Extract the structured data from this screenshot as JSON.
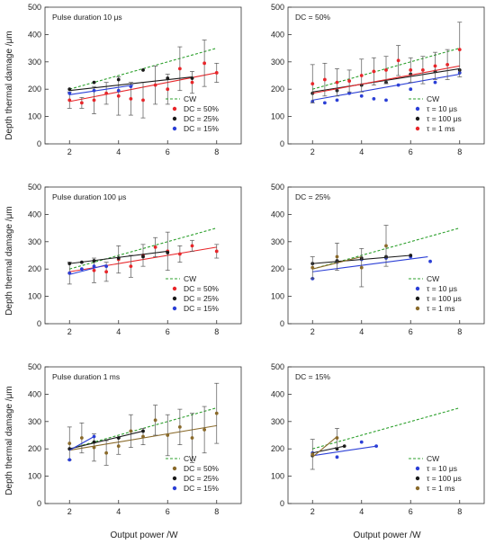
{
  "figure": {
    "ylabel": "Depth thermal damage /μm",
    "xlabel": "Output power /W"
  },
  "colors": {
    "cw": "#2ca02c",
    "red": "#e8262a",
    "black": "#1a1a1a",
    "blue": "#2b3fd6",
    "brown": "#8a6a2a"
  },
  "chart_data": [
    {
      "type": "scatter",
      "title": "Pulse duration 10 μs",
      "xlim": [
        1,
        9
      ],
      "ylim": [
        0,
        500
      ],
      "xticks": [
        2,
        4,
        6,
        8
      ],
      "yticks": [
        0,
        100,
        200,
        300,
        400,
        500
      ],
      "legend": [
        {
          "label": "CW",
          "style": "dash",
          "color": "#2ca02c"
        },
        {
          "label": "DC = 50%",
          "style": "dot",
          "color": "#e8262a"
        },
        {
          "label": "DC = 25%",
          "style": "dot",
          "color": "#1a1a1a"
        },
        {
          "label": "DC = 15%",
          "style": "dot",
          "color": "#2b3fd6"
        }
      ],
      "series": [
        {
          "color": "#2ca02c",
          "dash": true,
          "fit": [
            [
              2,
              200
            ],
            [
              8,
              350
            ]
          ],
          "points": []
        },
        {
          "color": "#e8262a",
          "fit": [
            [
              2,
              155
            ],
            [
              8,
              260
            ]
          ],
          "points": [
            [
              2,
              160,
              30
            ],
            [
              2.5,
              150,
              20
            ],
            [
              3,
              160,
              50
            ],
            [
              3.5,
              185,
              40
            ],
            [
              4,
              175,
              70
            ],
            [
              4.5,
              165,
              60
            ],
            [
              5,
              160,
              65
            ],
            [
              5.5,
              215,
              70
            ],
            [
              6,
              200,
              55
            ],
            [
              6.5,
              275,
              80
            ],
            [
              7,
              225,
              40
            ],
            [
              7.5,
              295,
              85
            ],
            [
              8,
              260,
              35
            ]
          ]
        },
        {
          "color": "#1a1a1a",
          "fit": [
            [
              2,
              195
            ],
            [
              7,
              245
            ]
          ],
          "points": [
            [
              2,
              200
            ],
            [
              3,
              225
            ],
            [
              4,
              235
            ],
            [
              5,
              270
            ],
            [
              6,
              240
            ],
            [
              7,
              240
            ]
          ]
        },
        {
          "color": "#2b3fd6",
          "fit": [
            [
              2,
              180
            ],
            [
              4.6,
              215
            ]
          ],
          "points": [
            [
              2,
              185
            ],
            [
              3,
              195
            ],
            [
              4,
              195
            ],
            [
              4.5,
              210
            ]
          ]
        }
      ]
    },
    {
      "type": "scatter",
      "title": "DC = 50%",
      "xlim": [
        1,
        9
      ],
      "ylim": [
        0,
        500
      ],
      "xticks": [
        2,
        4,
        6,
        8
      ],
      "yticks": [
        0,
        100,
        200,
        300,
        400,
        500
      ],
      "legend": [
        {
          "label": "CW",
          "style": "dash",
          "color": "#2ca02c"
        },
        {
          "label": "τ =  10 μs",
          "style": "dot",
          "color": "#2b3fd6"
        },
        {
          "label": "τ = 100 μs",
          "style": "dot",
          "color": "#1a1a1a"
        },
        {
          "label": "τ =   1 ms",
          "style": "dot",
          "color": "#e8262a"
        }
      ],
      "series": [
        {
          "color": "#2ca02c",
          "dash": true,
          "fit": [
            [
              2,
              200
            ],
            [
              8,
              350
            ]
          ],
          "points": []
        },
        {
          "color": "#2b3fd6",
          "fit": [
            [
              2,
              160
            ],
            [
              8,
              255
            ]
          ],
          "points": [
            [
              2,
              155
            ],
            [
              2.5,
              150
            ],
            [
              3,
              160
            ],
            [
              3.5,
              185
            ],
            [
              4,
              175
            ],
            [
              4.5,
              165
            ],
            [
              5,
              160
            ],
            [
              5.5,
              215
            ],
            [
              6,
              200
            ],
            [
              7,
              225
            ],
            [
              8,
              260
            ]
          ]
        },
        {
          "color": "#1a1a1a",
          "fit": [
            [
              2,
              190
            ],
            [
              8,
              275
            ]
          ],
          "points": [
            [
              2,
              185
            ],
            [
              3,
              195
            ],
            [
              4,
              215
            ],
            [
              5,
              225
            ],
            [
              6,
              255
            ],
            [
              7,
              265
            ],
            [
              8,
              270
            ]
          ]
        },
        {
          "color": "#e8262a",
          "fit": [
            [
              2,
              185
            ],
            [
              8,
              285
            ]
          ],
          "points": [
            [
              2,
              220,
              70
            ],
            [
              2.5,
              235,
              60
            ],
            [
              3,
              225,
              50
            ],
            [
              3.5,
              230,
              40
            ],
            [
              4,
              250,
              60
            ],
            [
              4.5,
              265,
              50
            ],
            [
              5,
              270,
              50
            ],
            [
              5.5,
              305,
              55
            ],
            [
              6,
              270,
              45
            ],
            [
              6.5,
              270,
              50
            ],
            [
              7,
              285,
              50
            ],
            [
              7.5,
              290,
              55
            ],
            [
              8,
              345,
              100
            ]
          ]
        }
      ]
    },
    {
      "type": "scatter",
      "title": "Pulse duration 100 μs",
      "xlim": [
        1,
        9
      ],
      "ylim": [
        0,
        500
      ],
      "xticks": [
        2,
        4,
        6,
        8
      ],
      "yticks": [
        0,
        100,
        200,
        300,
        400,
        500
      ],
      "legend": [
        {
          "label": "CW",
          "style": "dash",
          "color": "#2ca02c"
        },
        {
          "label": "DC = 50%",
          "style": "dot",
          "color": "#e8262a"
        },
        {
          "label": "DC = 25%",
          "style": "dot",
          "color": "#1a1a1a"
        },
        {
          "label": "DC = 15%",
          "style": "dot",
          "color": "#2b3fd6"
        }
      ],
      "series": [
        {
          "color": "#2ca02c",
          "dash": true,
          "fit": [
            [
              2,
              200
            ],
            [
              8,
              350
            ]
          ],
          "points": []
        },
        {
          "color": "#e8262a",
          "fit": [
            [
              2,
              190
            ],
            [
              8,
              280
            ]
          ],
          "points": [
            [
              2,
              185,
              40
            ],
            [
              3,
              195,
              45
            ],
            [
              3.5,
              190,
              35
            ],
            [
              4,
              235,
              50
            ],
            [
              4.5,
              210,
              40
            ],
            [
              5,
              250,
              40
            ],
            [
              5.5,
              280,
              35
            ],
            [
              6,
              265,
              70
            ],
            [
              6.5,
              255,
              30
            ],
            [
              7,
              285,
              20
            ],
            [
              8,
              265,
              25
            ]
          ]
        },
        {
          "color": "#1a1a1a",
          "fit": [
            [
              2,
              220
            ],
            [
              6,
              265
            ]
          ],
          "points": [
            [
              2,
              220
            ],
            [
              2.5,
              225
            ],
            [
              3,
              230
            ],
            [
              4,
              240
            ],
            [
              5,
              245
            ],
            [
              6,
              260
            ]
          ]
        },
        {
          "color": "#2b3fd6",
          "fit": [
            [
              2,
              180
            ],
            [
              3.5,
              215
            ]
          ],
          "points": [
            [
              2,
              185
            ],
            [
              2.5,
              200
            ],
            [
              3,
              210
            ],
            [
              3.5,
              210
            ]
          ]
        }
      ]
    },
    {
      "type": "scatter",
      "title": "DC = 25%",
      "xlim": [
        1,
        9
      ],
      "ylim": [
        0,
        500
      ],
      "xticks": [
        2,
        4,
        6,
        8
      ],
      "yticks": [
        0,
        100,
        200,
        300,
        400,
        500
      ],
      "legend": [
        {
          "label": "CW",
          "style": "dash",
          "color": "#2ca02c"
        },
        {
          "label": "τ =  10 μs",
          "style": "dot",
          "color": "#2b3fd6"
        },
        {
          "label": "τ = 100 μs",
          "style": "dot",
          "color": "#1a1a1a"
        },
        {
          "label": "τ =   1 ms",
          "style": "dot",
          "color": "#8a6a2a"
        }
      ],
      "series": [
        {
          "color": "#2ca02c",
          "dash": true,
          "fit": [
            [
              2,
              200
            ],
            [
              8,
              350
            ]
          ],
          "points": []
        },
        {
          "color": "#2b3fd6",
          "fit": [
            [
              2,
              190
            ],
            [
              6.7,
              245
            ]
          ],
          "points": [
            [
              2,
              165
            ],
            [
              3,
              225
            ],
            [
              4,
              235
            ],
            [
              5,
              240
            ],
            [
              6,
              245
            ],
            [
              6.8,
              228
            ]
          ]
        },
        {
          "color": "#1a1a1a",
          "fit": [
            [
              2,
              220
            ],
            [
              6,
              250
            ]
          ],
          "points": [
            [
              2,
              220
            ],
            [
              3,
              230
            ],
            [
              4,
              240
            ],
            [
              5,
              245
            ],
            [
              6,
              250
            ]
          ]
        },
        {
          "color": "#8a6a2a",
          "fit": [
            [
              2,
              200
            ],
            [
              4,
              245
            ]
          ],
          "points": [
            [
              2,
              205,
              40
            ],
            [
              3,
              245,
              50
            ],
            [
              4,
              205,
              70
            ],
            [
              5,
              285,
              75
            ]
          ]
        }
      ]
    },
    {
      "type": "scatter",
      "title": "Pulse duration 1 ms",
      "xlim": [
        1,
        9
      ],
      "ylim": [
        0,
        500
      ],
      "xticks": [
        2,
        4,
        6,
        8
      ],
      "yticks": [
        0,
        100,
        200,
        300,
        400,
        500
      ],
      "legend": [
        {
          "label": "CW",
          "style": "dash",
          "color": "#2ca02c"
        },
        {
          "label": "DC = 50%",
          "style": "dot",
          "color": "#8a6a2a"
        },
        {
          "label": "DC = 25%",
          "style": "dot",
          "color": "#1a1a1a"
        },
        {
          "label": "DC = 15%",
          "style": "dot",
          "color": "#2b3fd6"
        }
      ],
      "series": [
        {
          "color": "#2ca02c",
          "dash": true,
          "fit": [
            [
              2,
              200
            ],
            [
              8,
              350
            ]
          ],
          "points": []
        },
        {
          "color": "#8a6a2a",
          "fit": [
            [
              2,
              195
            ],
            [
              8,
              285
            ]
          ],
          "points": [
            [
              2,
              220,
              60
            ],
            [
              2.5,
              240,
              55
            ],
            [
              3,
              205,
              50
            ],
            [
              3.5,
              185,
              45
            ],
            [
              4,
              210,
              30
            ],
            [
              4.5,
              265,
              60
            ],
            [
              5,
              245,
              30
            ],
            [
              5.5,
              305,
              55
            ],
            [
              6,
              250,
              75
            ],
            [
              6.5,
              280,
              65
            ],
            [
              7,
              240,
              90
            ],
            [
              7.5,
              270,
              85
            ],
            [
              8,
              330,
              110
            ]
          ]
        },
        {
          "color": "#1a1a1a",
          "fit": [
            [
              2,
              200
            ],
            [
              5,
              265
            ]
          ],
          "points": [
            [
              2,
              200
            ],
            [
              3,
              225
            ],
            [
              4,
              240
            ],
            [
              5,
              265
            ]
          ]
        },
        {
          "color": "#2b3fd6",
          "fit": [
            [
              2,
              195
            ],
            [
              3,
              245
            ]
          ],
          "points": [
            [
              2,
              160
            ],
            [
              3,
              245
            ]
          ]
        }
      ]
    },
    {
      "type": "scatter",
      "title": "DC = 15%",
      "xlim": [
        1,
        9
      ],
      "ylim": [
        0,
        500
      ],
      "xticks": [
        2,
        4,
        6,
        8
      ],
      "yticks": [
        0,
        100,
        200,
        300,
        400,
        500
      ],
      "legend": [
        {
          "label": "CW",
          "style": "dash",
          "color": "#2ca02c"
        },
        {
          "label": "τ =  10 μs",
          "style": "dot",
          "color": "#2b3fd6"
        },
        {
          "label": "τ = 100 μs",
          "style": "dot",
          "color": "#1a1a1a"
        },
        {
          "label": "τ =   1 ms",
          "style": "dot",
          "color": "#8a6a2a"
        }
      ],
      "series": [
        {
          "color": "#2ca02c",
          "dash": true,
          "fit": [
            [
              2,
              200
            ],
            [
              8,
              350
            ]
          ],
          "points": []
        },
        {
          "color": "#2b3fd6",
          "fit": [
            [
              2,
              175
            ],
            [
              4.6,
              210
            ]
          ],
          "points": [
            [
              2,
              185
            ],
            [
              3,
              170
            ],
            [
              4,
              225
            ],
            [
              4.6,
              210
            ]
          ]
        },
        {
          "color": "#1a1a1a",
          "fit": [
            [
              2,
              185
            ],
            [
              3.3,
              210
            ]
          ],
          "points": [
            [
              2,
              175
            ],
            [
              3,
              200
            ],
            [
              3.3,
              210
            ]
          ]
        },
        {
          "color": "#8a6a2a",
          "fit": [
            [
              2,
              170
            ],
            [
              3,
              245
            ]
          ],
          "points": [
            [
              2,
              180,
              55
            ],
            [
              3,
              240,
              35
            ]
          ]
        }
      ]
    }
  ]
}
